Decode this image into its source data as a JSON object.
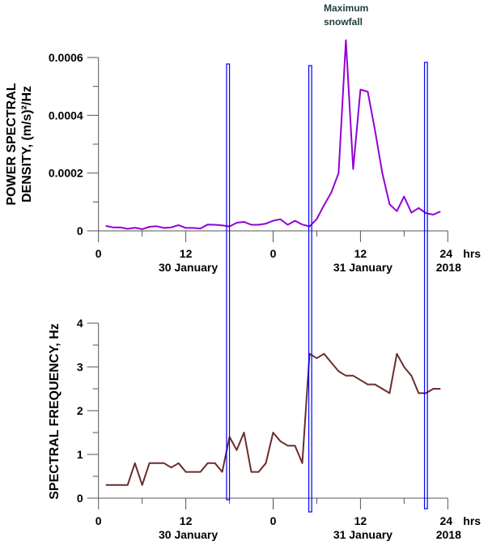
{
  "chart_data": [
    {
      "type": "line",
      "ylabel_line1": "POWER SPECTRAL",
      "ylabel_line2": "DENSITY, (m/s)²/Hz",
      "xunit": "hrs",
      "xlim": [
        0,
        48
      ],
      "ylim": [
        0,
        0.0006
      ],
      "xticks": [
        0,
        12,
        24,
        36,
        48
      ],
      "xtick_labels": [
        "0",
        "12",
        "0",
        "12",
        "24"
      ],
      "date_labels": [
        "30 January",
        "31 January",
        "2018"
      ],
      "yticks": [
        0,
        0.0002,
        0.0004,
        0.0006
      ],
      "ytick_labels": [
        "0",
        "0.0002",
        "0.0004",
        "0.0006"
      ],
      "annotation": [
        "Maximum",
        "snowfall"
      ],
      "color": "#9400d3",
      "x": [
        1,
        2,
        3,
        4,
        5,
        6,
        7,
        8,
        9,
        10,
        11,
        12,
        13,
        14,
        15,
        16,
        17,
        18,
        19,
        20,
        21,
        22,
        23,
        24,
        25,
        26,
        27,
        28,
        29,
        30,
        31,
        32,
        33,
        34,
        35,
        36,
        37,
        38,
        39,
        40,
        41,
        42,
        43,
        44,
        45,
        46,
        47
      ],
      "values": [
        1.7e-05,
        1.2e-05,
        1.2e-05,
        7e-06,
        1.1e-05,
        6e-06,
        1.4e-05,
        1.6e-05,
        1e-05,
        1.2e-05,
        2e-05,
        1e-05,
        1e-05,
        8e-06,
        2.2e-05,
        2.1e-05,
        1.9e-05,
        1.5e-05,
        2.8e-05,
        3.1e-05,
        2.1e-05,
        2.1e-05,
        2.5e-05,
        3.5e-05,
        4e-05,
        2.1e-05,
        3.5e-05,
        2.2e-05,
        1.5e-05,
        4.1e-05,
        8.9e-05,
        0.000133,
        0.0002,
        0.00066,
        0.000214,
        0.000489,
        0.000482,
        0.000348,
        0.0002,
        9.2e-05,
        6.8e-05,
        0.000119,
        6.3e-05,
        7.9e-05,
        6.1e-05,
        5.6e-05,
        6.7e-05
      ]
    },
    {
      "type": "line",
      "ylabel": "SPECTRAL FREQUENCY, Hz",
      "xunit": "hrs",
      "xlim": [
        0,
        48
      ],
      "ylim": [
        0,
        4
      ],
      "xticks": [
        0,
        12,
        24,
        36,
        48
      ],
      "xtick_labels": [
        "0",
        "12",
        "0",
        "12",
        "24"
      ],
      "date_labels": [
        "30 January",
        "31 January",
        "2018"
      ],
      "yticks": [
        0,
        1,
        2,
        3,
        4
      ],
      "ytick_labels": [
        "0",
        "1",
        "2",
        "3",
        "4"
      ],
      "color": "#6b2c2c",
      "x": [
        1,
        2,
        3,
        4,
        5,
        6,
        7,
        8,
        9,
        10,
        11,
        12,
        13,
        14,
        15,
        16,
        17,
        18,
        19,
        20,
        21,
        22,
        23,
        24,
        25,
        26,
        27,
        28,
        29,
        30,
        31,
        32,
        33,
        34,
        35,
        36,
        37,
        38,
        39,
        40,
        41,
        42,
        43,
        44,
        45,
        46,
        47
      ],
      "values": [
        0.3,
        0.3,
        0.3,
        0.3,
        0.8,
        0.3,
        0.8,
        0.8,
        0.8,
        0.7,
        0.8,
        0.6,
        0.6,
        0.6,
        0.8,
        0.8,
        0.6,
        1.4,
        1.1,
        1.5,
        0.6,
        0.6,
        0.8,
        1.5,
        1.3,
        1.2,
        1.2,
        0.8,
        3.3,
        3.2,
        3.3,
        3.1,
        2.9,
        2.8,
        2.8,
        2.7,
        2.6,
        2.6,
        2.5,
        2.4,
        3.3,
        3.0,
        2.8,
        2.4,
        2.4,
        2.5,
        2.5
      ]
    }
  ],
  "markers": {
    "hours": [
      17.8,
      29.1,
      45.0
    ],
    "color": "#0000ff"
  }
}
